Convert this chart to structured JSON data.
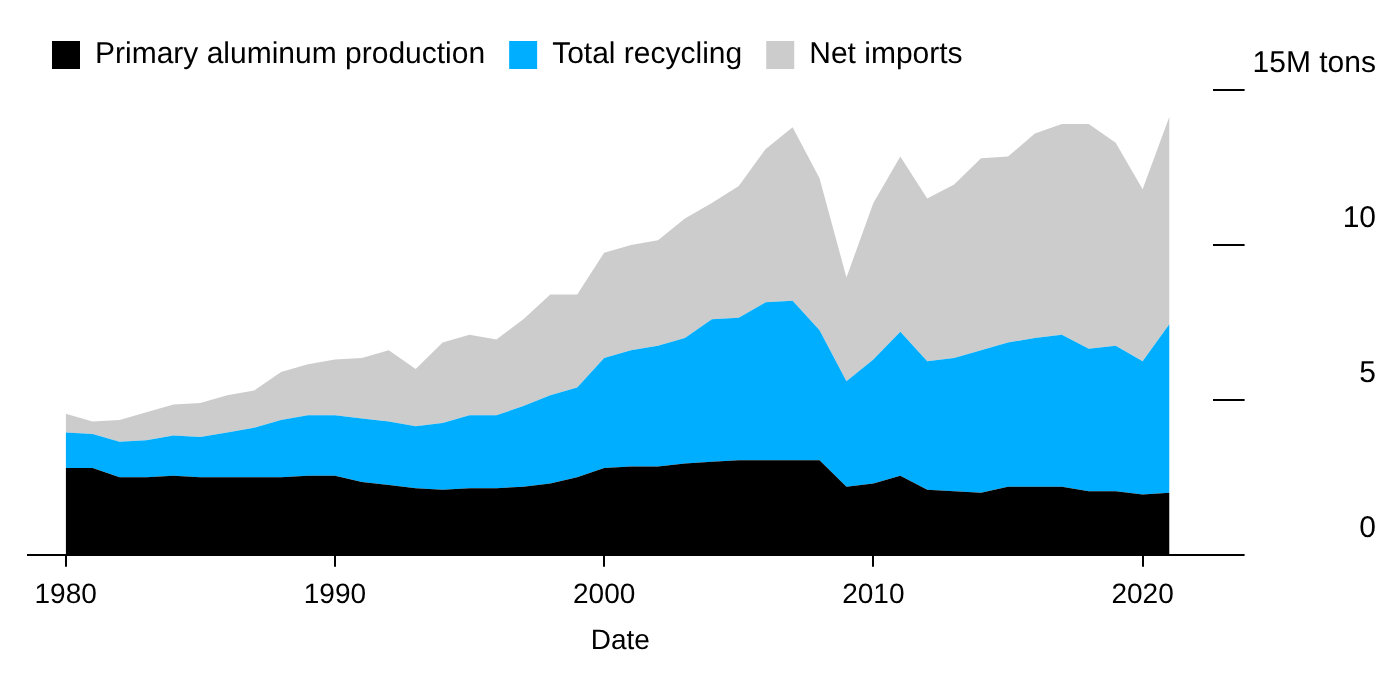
{
  "chart_data": {
    "type": "area",
    "stacked": true,
    "xlabel": "Date",
    "legend": "top left",
    "grid": false,
    "x": [
      1980,
      1981,
      1982,
      1983,
      1984,
      1985,
      1986,
      1987,
      1988,
      1989,
      1990,
      1991,
      1992,
      1993,
      1994,
      1995,
      1996,
      1997,
      1998,
      1999,
      2000,
      2001,
      2002,
      2003,
      2004,
      2005,
      2006,
      2007,
      2008,
      2009,
      2010,
      2011,
      2012,
      2013,
      2014,
      2015,
      2016,
      2017,
      2018,
      2019,
      2020,
      2021
    ],
    "xlim": [
      1978.6,
      2022.6
    ],
    "xticks": [
      1980,
      1990,
      2000,
      2010,
      2020
    ],
    "ylim": [
      0,
      15
    ],
    "yticks": [
      0,
      5,
      10,
      {
        "value": 15,
        "label": "15M tons"
      }
    ],
    "series": [
      {
        "name": "Primary aluminum production",
        "color": "#000000",
        "values": [
          2.8,
          2.8,
          2.5,
          2.5,
          2.55,
          2.5,
          2.5,
          2.5,
          2.5,
          2.55,
          2.55,
          2.35,
          2.25,
          2.15,
          2.1,
          2.15,
          2.15,
          2.2,
          2.3,
          2.5,
          2.8,
          2.85,
          2.85,
          2.95,
          3.0,
          3.05,
          3.05,
          3.05,
          3.05,
          2.2,
          2.3,
          2.55,
          2.1,
          2.05,
          2.0,
          2.2,
          2.2,
          2.2,
          2.05,
          2.05,
          1.95,
          2.0
        ]
      },
      {
        "name": "Total recycling",
        "color": "#00aeff",
        "values": [
          1.15,
          1.1,
          1.15,
          1.2,
          1.3,
          1.3,
          1.45,
          1.6,
          1.85,
          1.95,
          1.95,
          2.05,
          2.05,
          2.0,
          2.15,
          2.35,
          2.35,
          2.6,
          2.85,
          2.9,
          3.55,
          3.75,
          3.9,
          4.05,
          4.6,
          4.6,
          5.1,
          5.15,
          4.2,
          3.4,
          4.0,
          4.65,
          4.15,
          4.3,
          4.6,
          4.65,
          4.8,
          4.9,
          4.6,
          4.7,
          4.3,
          5.45
        ]
      },
      {
        "name": "Net imports",
        "color": "#cccccc",
        "values": [
          0.6,
          0.4,
          0.7,
          0.9,
          1.0,
          1.1,
          1.2,
          1.2,
          1.55,
          1.65,
          1.8,
          1.95,
          2.3,
          1.85,
          2.6,
          2.6,
          2.45,
          2.8,
          3.25,
          3.0,
          3.4,
          3.4,
          3.4,
          3.85,
          3.75,
          4.25,
          4.95,
          5.6,
          4.9,
          3.35,
          5.05,
          5.65,
          5.25,
          5.6,
          6.2,
          6.0,
          6.6,
          6.8,
          7.25,
          6.55,
          5.55,
          6.7
        ]
      }
    ]
  }
}
